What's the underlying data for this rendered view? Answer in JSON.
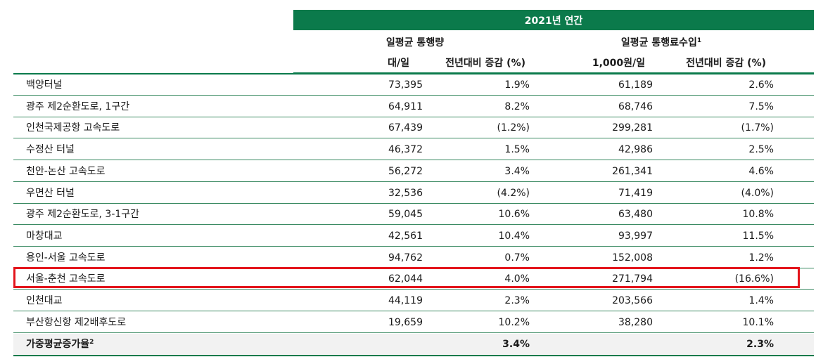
{
  "header": {
    "period": "2021년 연간",
    "traffic_group": "일평균 통행량",
    "revenue_group": "일평균 통행료수입",
    "revenue_note": "1",
    "traffic_unit": "대/일",
    "traffic_yoy": "전년대비 증감 (%)",
    "revenue_unit": "1,000원/일",
    "revenue_yoy": "전년대비 증감 (%)"
  },
  "rows": [
    {
      "name": "백양터널",
      "traffic": "73,395",
      "traffic_yoy": "1.9%",
      "revenue": "61,189",
      "revenue_yoy": "2.6%"
    },
    {
      "name": "광주 제2순환도로, 1구간",
      "traffic": "64,911",
      "traffic_yoy": "8.2%",
      "revenue": "68,746",
      "revenue_yoy": "7.5%"
    },
    {
      "name": "인천국제공항 고속도로",
      "traffic": "67,439",
      "traffic_yoy": "(1.2%)",
      "revenue": "299,281",
      "revenue_yoy": "(1.7%)"
    },
    {
      "name": "수정산 터널",
      "traffic": "46,372",
      "traffic_yoy": "1.5%",
      "revenue": "42,986",
      "revenue_yoy": "2.5%"
    },
    {
      "name": "천안-논산 고속도로",
      "traffic": "56,272",
      "traffic_yoy": "3.4%",
      "revenue": "261,341",
      "revenue_yoy": "4.6%"
    },
    {
      "name": "우면산 터널",
      "traffic": "32,536",
      "traffic_yoy": "(4.2%)",
      "revenue": "71,419",
      "revenue_yoy": "(4.0%)"
    },
    {
      "name": "광주 제2순환도로, 3-1구간",
      "traffic": "59,045",
      "traffic_yoy": "10.6%",
      "revenue": "63,480",
      "revenue_yoy": "10.8%"
    },
    {
      "name": "마창대교",
      "traffic": "42,561",
      "traffic_yoy": "10.4%",
      "revenue": "93,997",
      "revenue_yoy": "11.5%"
    },
    {
      "name": "용인-서울 고속도로",
      "traffic": "94,762",
      "traffic_yoy": "0.7%",
      "revenue": "152,008",
      "revenue_yoy": "1.2%"
    },
    {
      "name": "서울-춘천 고속도로",
      "traffic": "62,044",
      "traffic_yoy": "4.0%",
      "revenue": "271,794",
      "revenue_yoy": "(16.6%)"
    },
    {
      "name": "인천대교",
      "traffic": "44,119",
      "traffic_yoy": "2.3%",
      "revenue": "203,566",
      "revenue_yoy": "1.4%"
    },
    {
      "name": "부산항신항 제2배후도로",
      "traffic": "19,659",
      "traffic_yoy": "10.2%",
      "revenue": "38,280",
      "revenue_yoy": "10.1%"
    }
  ],
  "total": {
    "label": "가중평균증가율",
    "note": "2",
    "traffic_yoy": "3.4%",
    "revenue_yoy": "2.3%"
  },
  "colors": {
    "header_bg": "#0b7a4b",
    "rule": "#3a8a62",
    "highlight": "#e3141b",
    "total_bg": "#f2f2f2"
  }
}
